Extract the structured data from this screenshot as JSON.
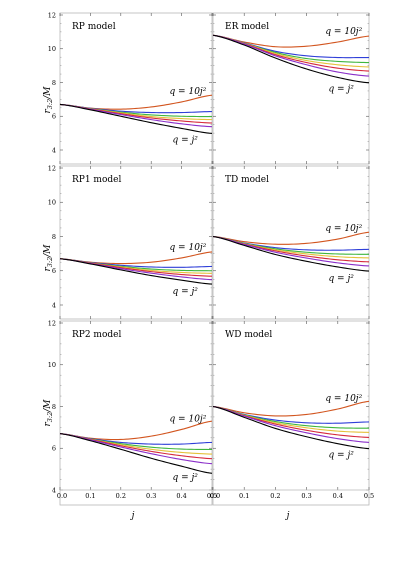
{
  "figure": {
    "x_axis_label": "j",
    "y_axis_label": "r_{3:2}/M"
  },
  "chart_data": [
    {
      "type": "line",
      "panel": "RP model",
      "title": "RP model",
      "xlim": [
        0,
        0.5
      ],
      "ylim": [
        4,
        12
      ],
      "xticks": [
        "0.0",
        "0.1",
        "0.2",
        "0.3",
        "0.4",
        "0.5"
      ],
      "yticks": [
        "4",
        "6",
        "8",
        "10",
        "12"
      ],
      "annotations": [
        "q = 10j²",
        "q = j²"
      ],
      "x": [
        0,
        0.1,
        0.2,
        0.3,
        0.4,
        0.5
      ],
      "series": [
        {
          "color": "#d2551f",
          "values": [
            6.7,
            6.48,
            6.42,
            6.55,
            6.85,
            7.25
          ]
        },
        {
          "color": "#2f3fd8",
          "values": [
            6.7,
            6.47,
            6.3,
            6.22,
            6.22,
            6.28
          ]
        },
        {
          "color": "#3fb63f",
          "values": [
            6.7,
            6.45,
            6.24,
            6.08,
            6.0,
            5.98
          ]
        },
        {
          "color": "#e4c13a",
          "values": [
            6.7,
            6.44,
            6.2,
            5.98,
            5.86,
            5.8
          ]
        },
        {
          "color": "#d62a3c",
          "values": [
            6.7,
            6.43,
            6.15,
            5.9,
            5.72,
            5.6
          ]
        },
        {
          "color": "#8a2fc9",
          "values": [
            6.7,
            6.41,
            6.1,
            5.8,
            5.55,
            5.38
          ]
        },
        {
          "color": "#000000",
          "values": [
            6.7,
            6.38,
            6.0,
            5.62,
            5.28,
            4.98
          ]
        }
      ]
    },
    {
      "type": "line",
      "panel": "ER model",
      "title": "ER model",
      "xlim": [
        0,
        0.5
      ],
      "ylim": [
        4,
        12
      ],
      "xticks": [
        "0.0",
        "0.1",
        "0.2",
        "0.3",
        "0.4",
        "0.5"
      ],
      "yticks": [
        "4",
        "6",
        "8",
        "10",
        "12"
      ],
      "annotations": [
        "q = 10j²",
        "q = j²"
      ],
      "x": [
        0,
        0.1,
        0.2,
        0.3,
        0.4,
        0.5
      ],
      "series": [
        {
          "color": "#d2551f",
          "values": [
            10.8,
            10.4,
            10.12,
            10.15,
            10.4,
            10.75
          ]
        },
        {
          "color": "#2f3fd8",
          "values": [
            10.8,
            10.35,
            9.85,
            9.58,
            9.48,
            9.48
          ]
        },
        {
          "color": "#3fb63f",
          "values": [
            10.8,
            10.33,
            9.78,
            9.42,
            9.25,
            9.18
          ]
        },
        {
          "color": "#e4c13a",
          "values": [
            10.8,
            10.32,
            9.72,
            9.3,
            9.05,
            8.92
          ]
        },
        {
          "color": "#d62a3c",
          "values": [
            10.8,
            10.3,
            9.65,
            9.18,
            8.85,
            8.68
          ]
        },
        {
          "color": "#8a2fc9",
          "values": [
            10.8,
            10.28,
            9.58,
            9.05,
            8.62,
            8.38
          ]
        },
        {
          "color": "#000000",
          "values": [
            10.8,
            10.22,
            9.45,
            8.8,
            8.3,
            7.98
          ]
        }
      ]
    },
    {
      "type": "line",
      "panel": "RP1 model",
      "title": "RP1 model",
      "xlim": [
        0,
        0.5
      ],
      "ylim": [
        4,
        12
      ],
      "xticks": [
        "0.0",
        "0.1",
        "0.2",
        "0.3",
        "0.4",
        "0.5"
      ],
      "yticks": [
        "4",
        "6",
        "8",
        "10",
        "12"
      ],
      "annotations": [
        "q = 10j²",
        "q = j²"
      ],
      "x": [
        0,
        0.1,
        0.2,
        0.3,
        0.4,
        0.5
      ],
      "series": [
        {
          "color": "#d2551f",
          "values": [
            6.7,
            6.5,
            6.42,
            6.5,
            6.75,
            7.1
          ]
        },
        {
          "color": "#2f3fd8",
          "values": [
            6.7,
            6.48,
            6.32,
            6.22,
            6.2,
            6.25
          ]
        },
        {
          "color": "#3fb63f",
          "values": [
            6.7,
            6.46,
            6.26,
            6.1,
            6.02,
            6.0
          ]
        },
        {
          "color": "#e4c13a",
          "values": [
            6.7,
            6.45,
            6.22,
            6.02,
            5.9,
            5.85
          ]
        },
        {
          "color": "#d62a3c",
          "values": [
            6.7,
            6.44,
            6.18,
            5.95,
            5.78,
            5.68
          ]
        },
        {
          "color": "#8a2fc9",
          "values": [
            6.7,
            6.42,
            6.12,
            5.86,
            5.64,
            5.48
          ]
        },
        {
          "color": "#000000",
          "values": [
            6.7,
            6.4,
            6.05,
            5.72,
            5.45,
            5.22
          ]
        }
      ]
    },
    {
      "type": "line",
      "panel": "TD model",
      "title": "TD model",
      "xlim": [
        0,
        0.5
      ],
      "ylim": [
        4,
        12
      ],
      "xticks": [
        "0.0",
        "0.1",
        "0.2",
        "0.3",
        "0.4",
        "0.5"
      ],
      "yticks": [
        "4",
        "6",
        "8",
        "10",
        "12"
      ],
      "annotations": [
        "q = 10j²",
        "q = j²"
      ],
      "x": [
        0,
        0.1,
        0.2,
        0.3,
        0.4,
        0.5
      ],
      "series": [
        {
          "color": "#d2551f",
          "values": [
            8.0,
            7.7,
            7.55,
            7.6,
            7.85,
            8.25
          ]
        },
        {
          "color": "#2f3fd8",
          "values": [
            8.0,
            7.62,
            7.35,
            7.22,
            7.2,
            7.25
          ]
        },
        {
          "color": "#3fb63f",
          "values": [
            8.0,
            7.6,
            7.28,
            7.08,
            6.98,
            6.96
          ]
        },
        {
          "color": "#e4c13a",
          "values": [
            8.0,
            7.58,
            7.22,
            6.98,
            6.82,
            6.75
          ]
        },
        {
          "color": "#d62a3c",
          "values": [
            8.0,
            7.56,
            7.16,
            6.86,
            6.64,
            6.52
          ]
        },
        {
          "color": "#8a2fc9",
          "values": [
            8.0,
            7.54,
            7.08,
            6.74,
            6.46,
            6.28
          ]
        },
        {
          "color": "#000000",
          "values": [
            8.0,
            7.48,
            6.95,
            6.55,
            6.22,
            5.98
          ]
        }
      ]
    },
    {
      "type": "line",
      "panel": "RP2 model",
      "title": "RP2 model",
      "xlim": [
        0,
        0.5
      ],
      "ylim": [
        4,
        12
      ],
      "xticks": [
        "0.0",
        "0.1",
        "0.2",
        "0.3",
        "0.4",
        "0.5"
      ],
      "yticks": [
        "4",
        "6",
        "8",
        "10",
        "12"
      ],
      "annotations": [
        "q = 10j²",
        "q = j²"
      ],
      "x": [
        0,
        0.1,
        0.2,
        0.3,
        0.4,
        0.5
      ],
      "series": [
        {
          "color": "#d2551f",
          "values": [
            6.7,
            6.48,
            6.42,
            6.58,
            6.9,
            7.3
          ]
        },
        {
          "color": "#2f3fd8",
          "values": [
            6.7,
            6.46,
            6.28,
            6.2,
            6.2,
            6.28
          ]
        },
        {
          "color": "#3fb63f",
          "values": [
            6.7,
            6.44,
            6.22,
            6.05,
            5.96,
            5.94
          ]
        },
        {
          "color": "#e4c13a",
          "values": [
            6.7,
            6.43,
            6.17,
            5.95,
            5.8,
            5.72
          ]
        },
        {
          "color": "#d62a3c",
          "values": [
            6.7,
            6.42,
            6.12,
            5.85,
            5.64,
            5.5
          ]
        },
        {
          "color": "#8a2fc9",
          "values": [
            6.7,
            6.4,
            6.06,
            5.74,
            5.46,
            5.26
          ]
        },
        {
          "color": "#000000",
          "values": [
            6.7,
            6.36,
            5.95,
            5.52,
            5.14,
            4.8
          ]
        }
      ]
    },
    {
      "type": "line",
      "panel": "WD model",
      "title": "WD model",
      "xlim": [
        0,
        0.5
      ],
      "ylim": [
        4,
        12
      ],
      "xticks": [
        "0.0",
        "0.1",
        "0.2",
        "0.3",
        "0.4",
        "0.5"
      ],
      "yticks": [
        "4",
        "6",
        "8",
        "10",
        "12"
      ],
      "annotations": [
        "q = 10j²",
        "q = j²"
      ],
      "x": [
        0,
        0.1,
        0.2,
        0.3,
        0.4,
        0.5
      ],
      "series": [
        {
          "color": "#d2551f",
          "values": [
            8.0,
            7.7,
            7.55,
            7.62,
            7.88,
            8.25
          ]
        },
        {
          "color": "#2f3fd8",
          "values": [
            8.0,
            7.62,
            7.35,
            7.22,
            7.2,
            7.26
          ]
        },
        {
          "color": "#3fb63f",
          "values": [
            8.0,
            7.6,
            7.28,
            7.08,
            6.98,
            6.96
          ]
        },
        {
          "color": "#e4c13a",
          "values": [
            8.0,
            7.58,
            7.22,
            6.98,
            6.82,
            6.76
          ]
        },
        {
          "color": "#d62a3c",
          "values": [
            8.0,
            7.56,
            7.16,
            6.86,
            6.64,
            6.52
          ]
        },
        {
          "color": "#8a2fc9",
          "values": [
            8.0,
            7.54,
            7.08,
            6.74,
            6.46,
            6.28
          ]
        },
        {
          "color": "#000000",
          "values": [
            8.0,
            7.48,
            6.95,
            6.55,
            6.22,
            5.98
          ]
        }
      ]
    }
  ]
}
